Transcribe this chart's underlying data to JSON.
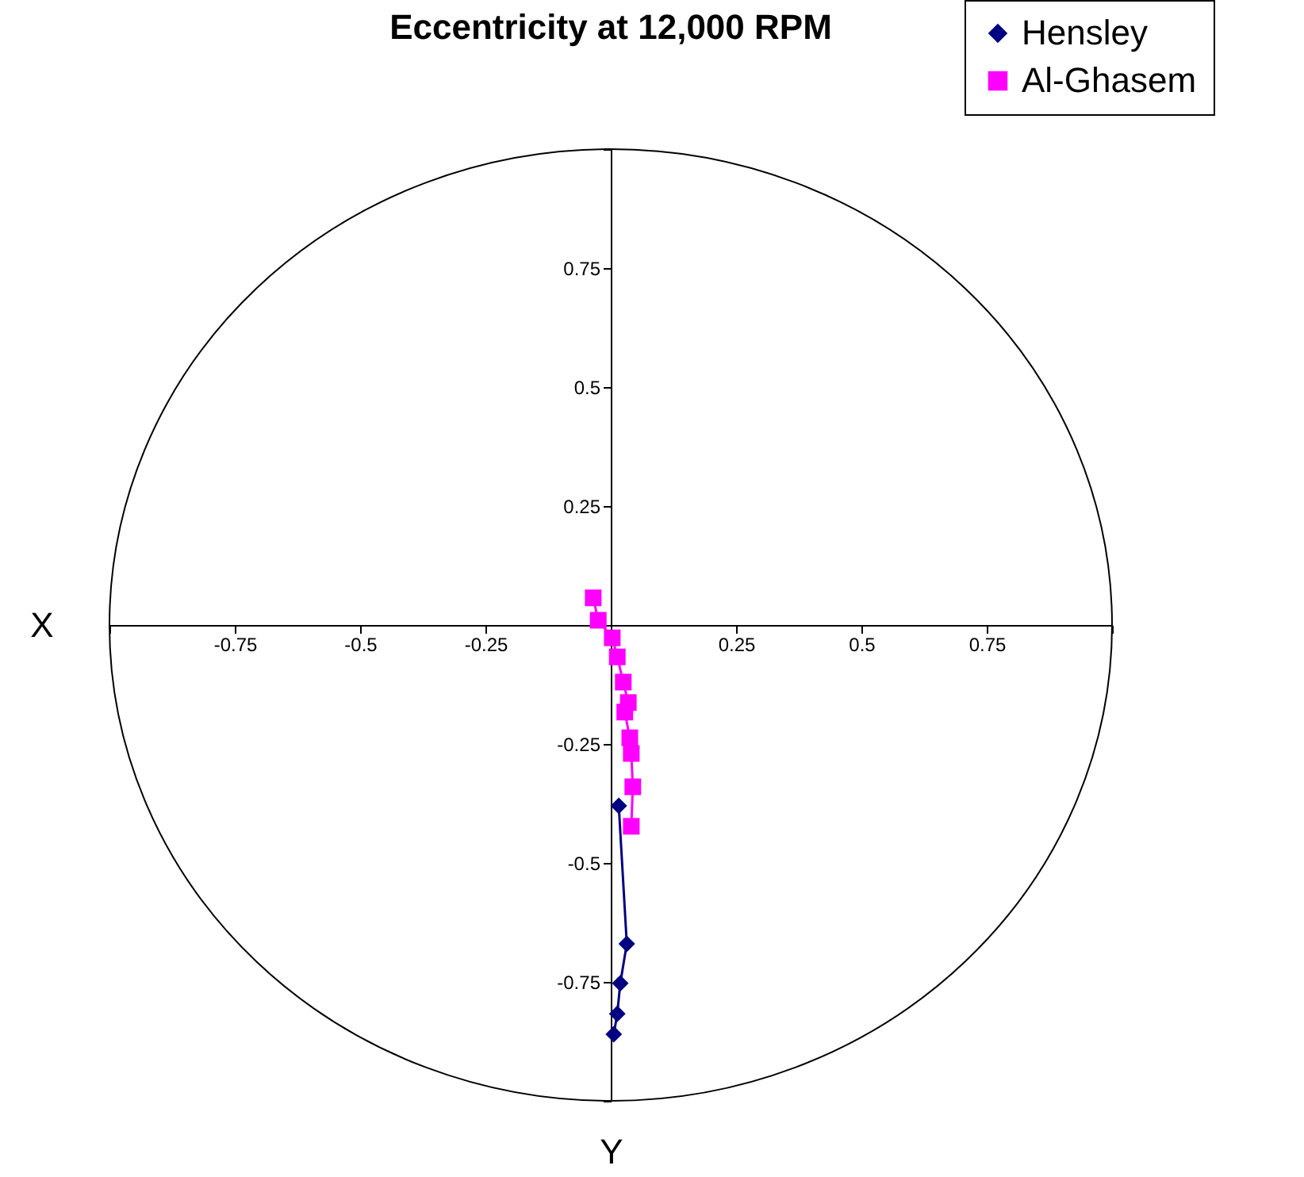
{
  "chart_data": {
    "type": "line",
    "title": "Eccentricity at 12,000 RPM",
    "xlabel": "Y",
    "ylabel": "X",
    "xlim": [
      -1,
      1
    ],
    "ylim": [
      -1,
      1
    ],
    "xticks": [
      {
        "value": -1,
        "label": null
      },
      -0.75,
      -0.5,
      -0.25,
      0.25,
      0.5,
      0.75,
      {
        "value": 1,
        "label": null
      }
    ],
    "yticks": [
      {
        "value": -1,
        "label": null
      },
      -0.75,
      -0.5,
      -0.25,
      0.25,
      0.5,
      0.75,
      {
        "value": 1,
        "label": null
      }
    ],
    "grid": false,
    "legend": "top right",
    "series": [
      {
        "name": "Hensley",
        "color": "#000080",
        "marker": "diamond",
        "x": [
          0.016,
          0.032,
          0.019,
          0.013,
          0.006
        ],
        "values": [
          -0.38,
          -0.67,
          -0.753,
          -0.817,
          -0.86
        ]
      },
      {
        "name": "Al-Ghasem",
        "color": "#ff00ff",
        "marker": "square",
        "x": [
          -0.035,
          -0.025,
          0.003,
          0.013,
          0.025,
          0.035,
          0.028,
          0.038,
          0.041,
          0.044,
          0.041
        ],
        "values": [
          0.057,
          0.01,
          -0.027,
          -0.067,
          -0.12,
          -0.163,
          -0.183,
          -0.237,
          -0.27,
          -0.34,
          -0.423
        ]
      }
    ]
  }
}
